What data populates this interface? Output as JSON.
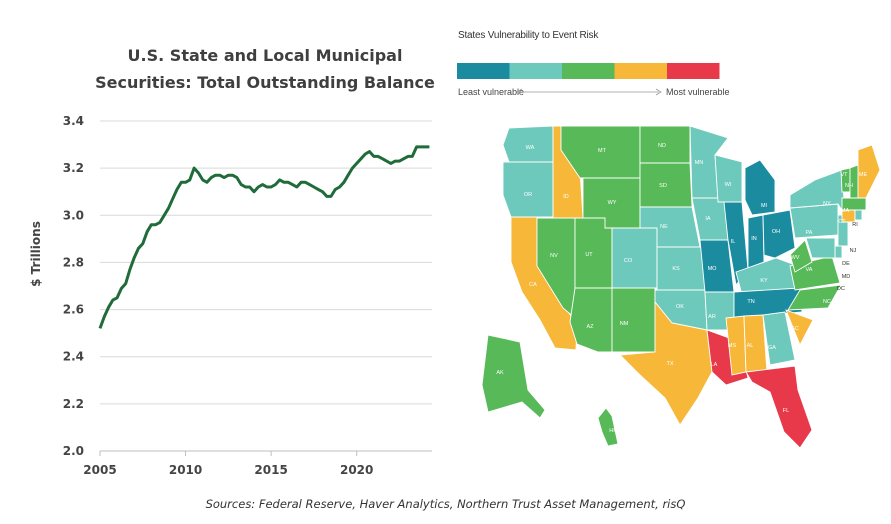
{
  "chart_data": [
    {
      "type": "line",
      "title": "U.S. State and Local Municipal Securities: Total Outstanding Balance",
      "title_lines": [
        "U.S. State and Local Municipal",
        "Securities: Total Outstanding Balance"
      ],
      "xlabel": "",
      "ylabel": "$ Trillions",
      "xlim": [
        2005,
        2024.4
      ],
      "ylim": [
        2.0,
        3.4
      ],
      "x_ticks": [
        "2005",
        "2010",
        "2015",
        "2020"
      ],
      "y_ticks": [
        "2.0",
        "2.2",
        "2.4",
        "2.6",
        "2.8",
        "3.0",
        "3.2",
        "3.4"
      ],
      "grid": "horizontal",
      "line_color": "#1f6b3a",
      "series": [
        {
          "name": "",
          "x": [
            2005.0,
            2005.25,
            2005.5,
            2005.75,
            2006.0,
            2006.25,
            2006.5,
            2006.75,
            2007.0,
            2007.25,
            2007.5,
            2007.75,
            2008.0,
            2008.25,
            2008.5,
            2008.75,
            2009.0,
            2009.25,
            2009.5,
            2009.75,
            2010.0,
            2010.25,
            2010.5,
            2010.75,
            2011.0,
            2011.25,
            2011.5,
            2011.75,
            2012.0,
            2012.25,
            2012.5,
            2012.75,
            2013.0,
            2013.25,
            2013.5,
            2013.75,
            2014.0,
            2014.25,
            2014.5,
            2014.75,
            2015.0,
            2015.25,
            2015.5,
            2015.75,
            2016.0,
            2016.25,
            2016.5,
            2016.75,
            2017.0,
            2017.25,
            2017.5,
            2017.75,
            2018.0,
            2018.25,
            2018.5,
            2018.75,
            2019.0,
            2019.25,
            2019.5,
            2019.75,
            2020.0,
            2020.25,
            2020.5,
            2020.75,
            2021.0,
            2021.25,
            2021.5,
            2021.75,
            2022.0,
            2022.25,
            2022.5,
            2022.75,
            2023.0,
            2023.25,
            2023.5,
            2023.75,
            2024.0,
            2024.25
          ],
          "y": [
            2.52,
            2.57,
            2.61,
            2.64,
            2.65,
            2.69,
            2.71,
            2.77,
            2.82,
            2.86,
            2.88,
            2.93,
            2.96,
            2.96,
            2.97,
            3.0,
            3.03,
            3.07,
            3.11,
            3.14,
            3.14,
            3.15,
            3.2,
            3.18,
            3.15,
            3.14,
            3.16,
            3.17,
            3.17,
            3.16,
            3.17,
            3.17,
            3.16,
            3.13,
            3.12,
            3.12,
            3.1,
            3.12,
            3.13,
            3.12,
            3.12,
            3.13,
            3.15,
            3.14,
            3.14,
            3.13,
            3.12,
            3.14,
            3.14,
            3.13,
            3.12,
            3.11,
            3.1,
            3.08,
            3.08,
            3.11,
            3.12,
            3.14,
            3.17,
            3.2,
            3.22,
            3.24,
            3.26,
            3.27,
            3.25,
            3.25,
            3.24,
            3.23,
            3.22,
            3.23,
            3.23,
            3.24,
            3.25,
            3.25,
            3.29,
            3.29,
            3.29,
            3.29
          ]
        }
      ]
    },
    {
      "type": "map",
      "title": "States Vulnerability to Event Risk",
      "legend": {
        "colors": [
          "#1b8ca0",
          "#6cc9bb",
          "#57b957",
          "#f7b83a",
          "#e8394a"
        ],
        "left_label": "Least vulnerable",
        "right_label": "Most vulnerable"
      },
      "categories": {
        "1": [
          "MI",
          "IL",
          "IN",
          "MO",
          "OH",
          "TN"
        ],
        "2": [
          "WA",
          "OR",
          "CO",
          "NE",
          "KS",
          "IA",
          "MN",
          "WI",
          "OK",
          "AR",
          "KY",
          "PA",
          "NY",
          "GA",
          "NJ",
          "DC",
          "MD",
          "DE",
          "RI"
        ],
        "3": [
          "MT",
          "ND",
          "SD",
          "WY",
          "NV",
          "UT",
          "AZ",
          "NM",
          "AK",
          "HI",
          "WV",
          "VA",
          "NC",
          "VT",
          "NH",
          "MA"
        ],
        "4": [
          "ID",
          "CA",
          "TX",
          "MS",
          "AL",
          "SC",
          "ME",
          "CT"
        ],
        "5": [
          "LA",
          "FL"
        ]
      }
    }
  ],
  "sources": "Sources: Federal Reserve, Haver Analytics, Northern Trust Asset Management, risQ"
}
